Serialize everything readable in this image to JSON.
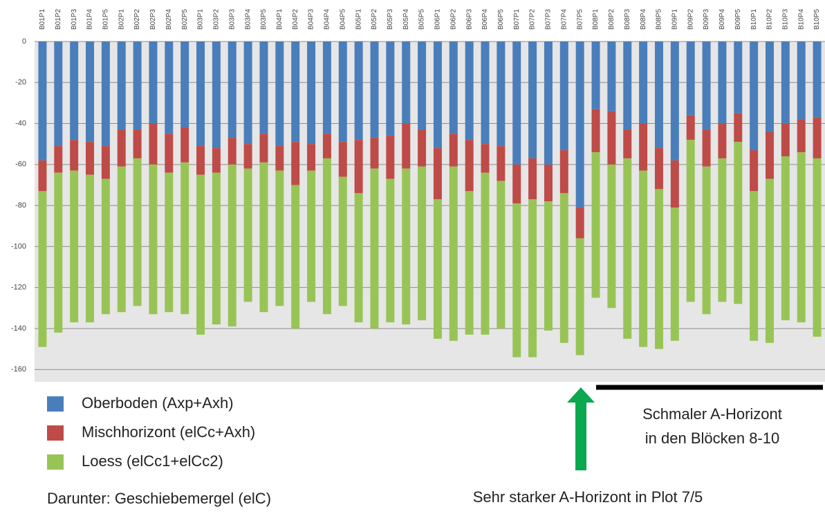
{
  "chart_data": {
    "type": "stacked_bar",
    "categories": [
      "B01P1",
      "B01P2",
      "B01P3",
      "B01P4",
      "B01P5",
      "B02P1",
      "B02P2",
      "B02P3",
      "B02P4",
      "B02P5",
      "B03P1",
      "B03P2",
      "B03P3",
      "B03P4",
      "B03P5",
      "B04P1",
      "B04P2",
      "B04P3",
      "B04P4",
      "B04P5",
      "B05P1",
      "B05P2",
      "B05P3",
      "B05P4",
      "B05P5",
      "B06P1",
      "B06P2",
      "B06P3",
      "B06P4",
      "B06P5",
      "B07P1",
      "B07P2",
      "B07P3",
      "B07P4",
      "B07P5",
      "B08P1",
      "B08P2",
      "B08P3",
      "B08P4",
      "B08P5",
      "B09P1",
      "B09P2",
      "B09P3",
      "B09P4",
      "B09P5",
      "B10P1",
      "B10P2",
      "B10P3",
      "B10P4",
      "B10P5"
    ],
    "series": [
      {
        "name": "Oberboden (Axp+Axh)",
        "color": "#4a7ebb",
        "values": [
          -58,
          -51,
          -48,
          -49,
          -51,
          -43,
          -43,
          -40,
          -45,
          -42,
          -51,
          -52,
          -47,
          -50,
          -45,
          -51,
          -49,
          -50,
          -45,
          -49,
          -48,
          -47,
          -46,
          -40,
          -43,
          -52,
          -45,
          -48,
          -50,
          -51,
          -60,
          -57,
          -60,
          -53,
          -81,
          -33,
          -34,
          -43,
          -40,
          -52,
          -58,
          -36,
          -43,
          -40,
          -35,
          -53,
          -44,
          -40,
          -38,
          -37
        ]
      },
      {
        "name": "Mischhorizont (elCc+Axh)",
        "color": "#be4b48",
        "values": [
          -15,
          -13,
          -15,
          -16,
          -16,
          -18,
          -14,
          -20,
          -19,
          -17,
          -14,
          -12,
          -13,
          -12,
          -14,
          -12,
          -21,
          -13,
          -12,
          -17,
          -26,
          -15,
          -21,
          -22,
          -18,
          -25,
          -16,
          -25,
          -14,
          -17,
          -19,
          -20,
          -18,
          -21,
          -15,
          -21,
          -26,
          -14,
          -23,
          -20,
          -23,
          -12,
          -18,
          -17,
          -14,
          -20,
          -23,
          -16,
          -16,
          -20
        ]
      },
      {
        "name": "Loess (elCc1+elCc2)",
        "color": "#98c456",
        "values": [
          -76,
          -78,
          -74,
          -72,
          -66,
          -71,
          -72,
          -73,
          -68,
          -74,
          -78,
          -74,
          -79,
          -65,
          -73,
          -66,
          -70,
          -64,
          -76,
          -63,
          -63,
          -78,
          -70,
          -76,
          -75,
          -68,
          -85,
          -70,
          -79,
          -72,
          -75,
          -77,
          -63,
          -73,
          -57,
          -71,
          -70,
          -88,
          -86,
          -78,
          -65,
          -79,
          -72,
          -70,
          -79,
          -73,
          -80,
          -80,
          -83,
          -87
        ]
      }
    ],
    "ylim": [
      -166,
      0
    ],
    "yticks": [
      0,
      -20,
      -40,
      -60,
      -80,
      -100,
      -120,
      -140,
      -160
    ],
    "grid": true,
    "annotations": [
      "Darunter: Geschiebemergel (elC)",
      "Schmaler A-Horizont",
      "in den Blöcken 8-10",
      "Sehr starker A-Horizont in Plot 7/5"
    ]
  }
}
